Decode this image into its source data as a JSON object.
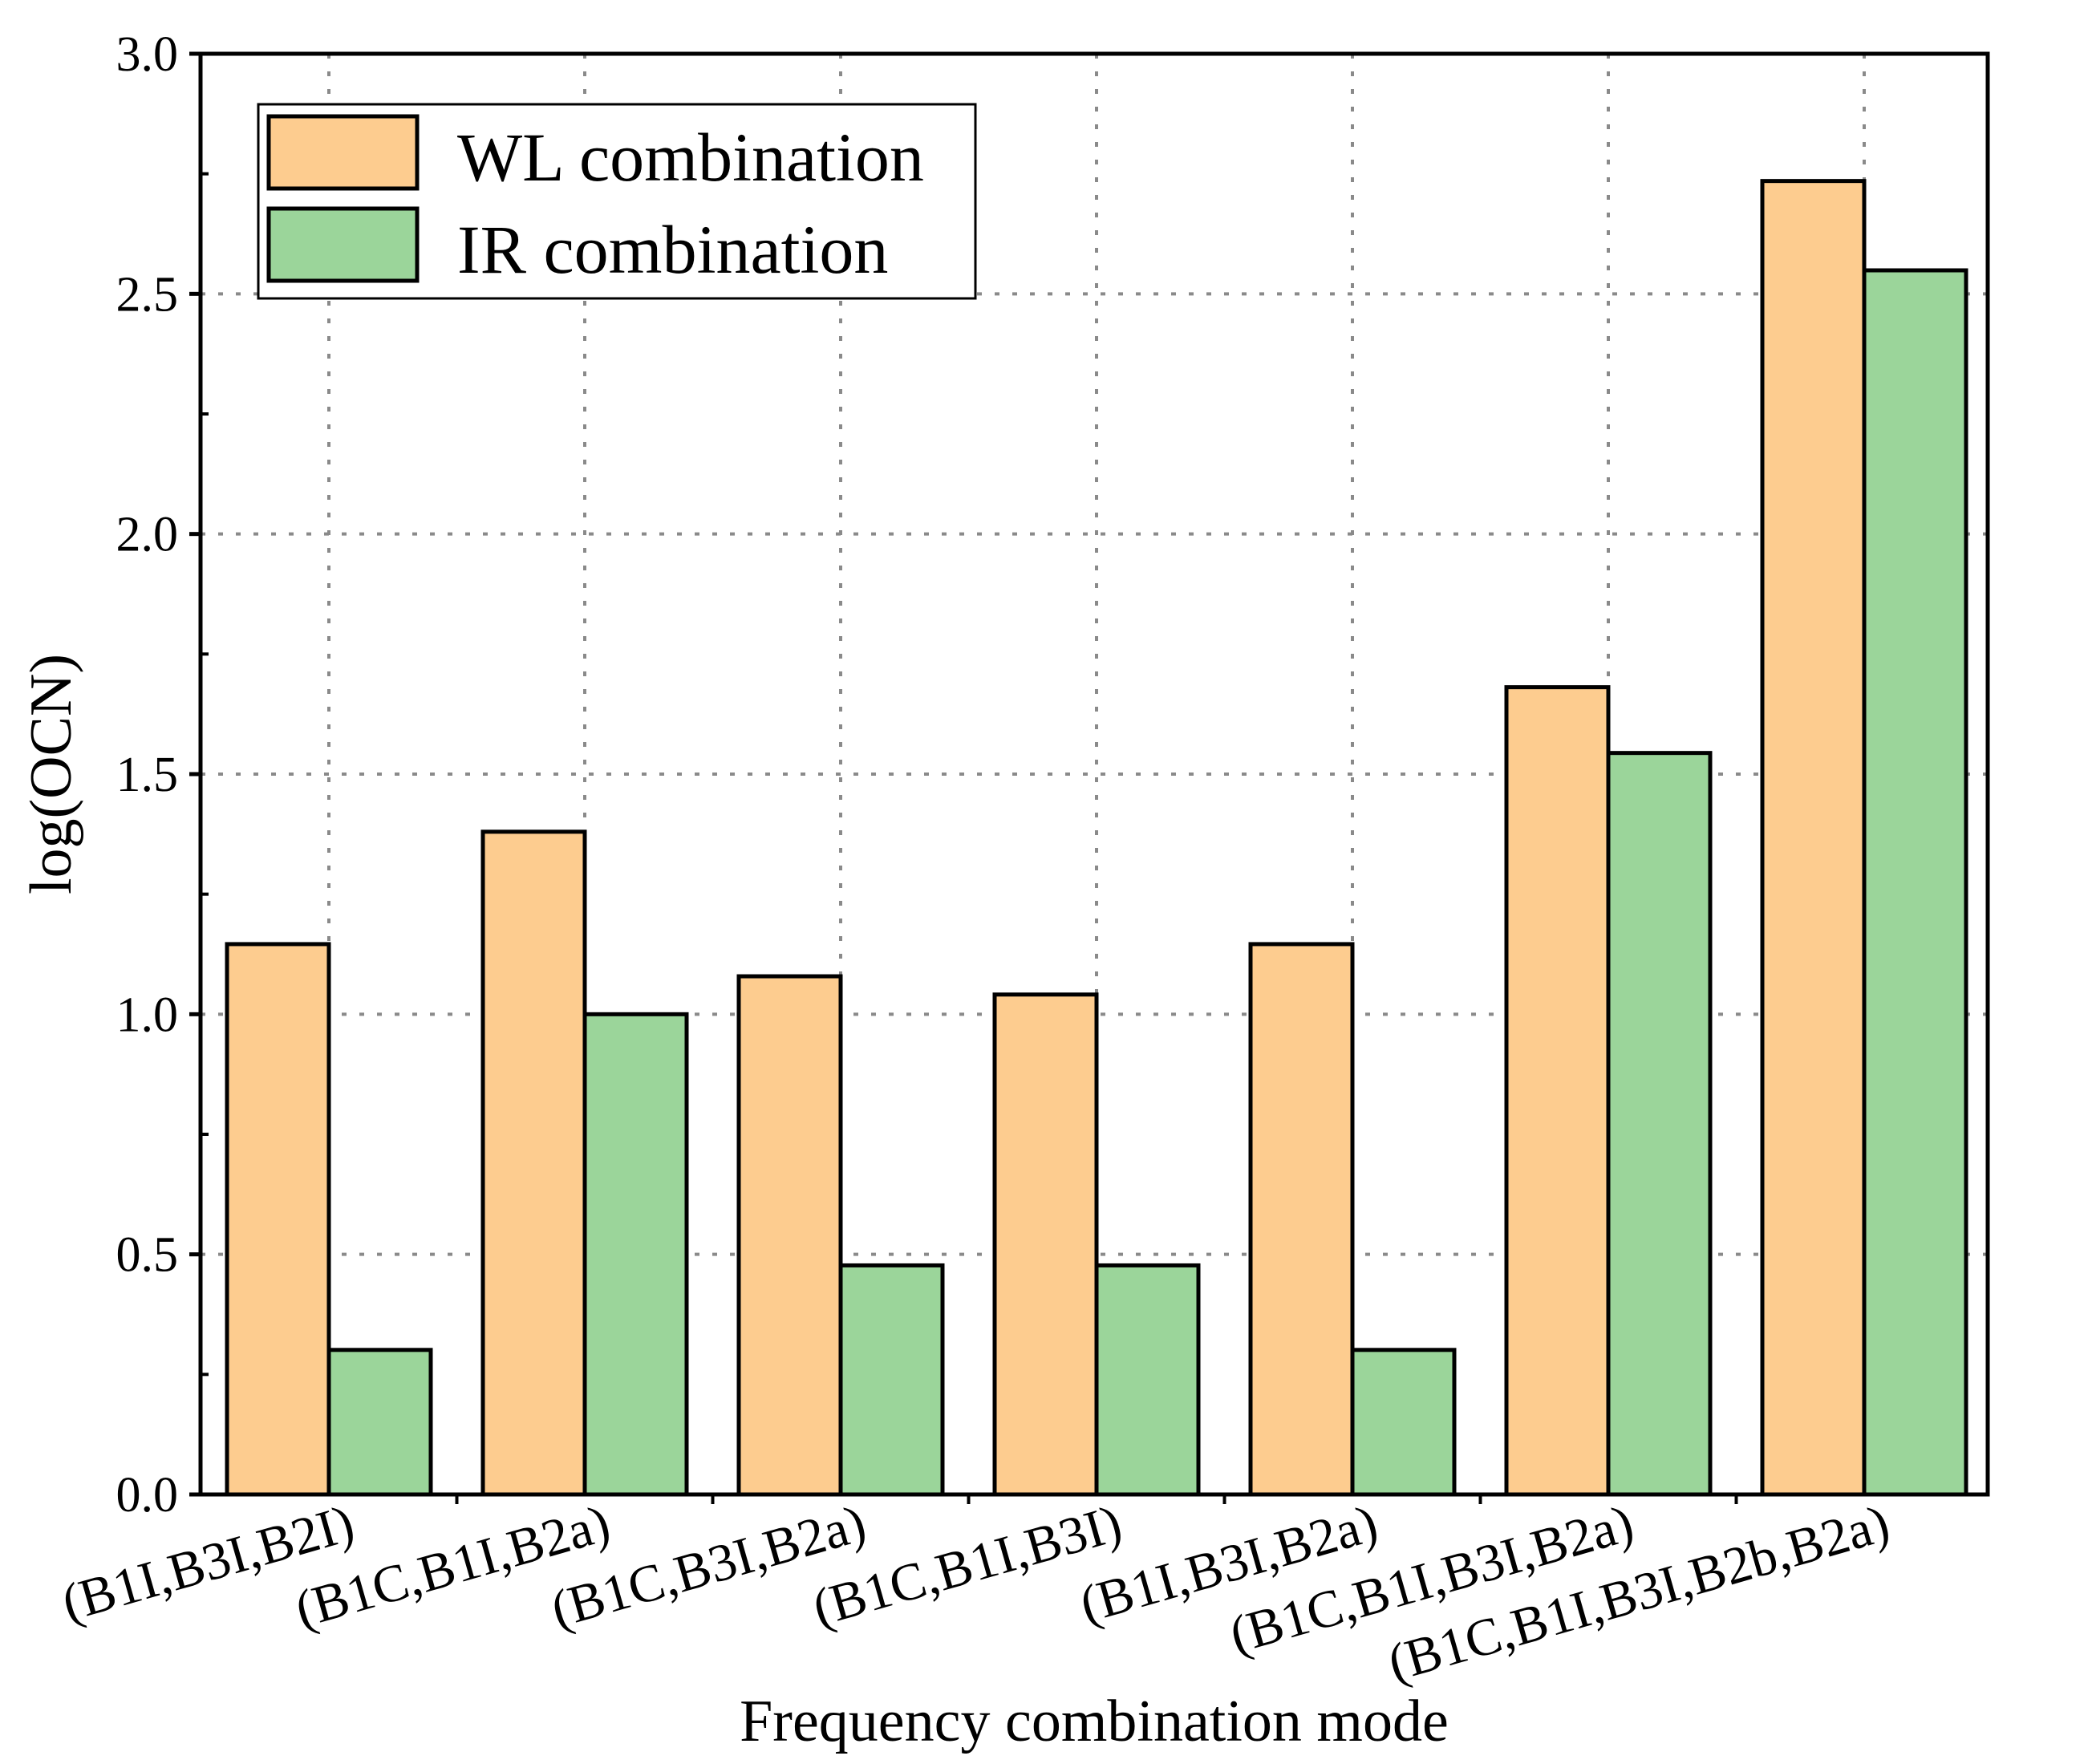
{
  "chart_data": {
    "type": "bar",
    "title": "",
    "xlabel": "Frequency combination mode",
    "ylabel": "log(OCN)",
    "ylim": [
      0,
      3.0
    ],
    "y_ticks": [
      "0.0",
      "0.5",
      "1.0",
      "1.5",
      "2.0",
      "2.5",
      "3.0"
    ],
    "y_tick_values": [
      0,
      0.5,
      1.0,
      1.5,
      2.0,
      2.5,
      3.0
    ],
    "grid": true,
    "legend_position": "top-left",
    "categories": [
      "(B1I,B3I,B2I)",
      "(B1C,B1I,B2a)",
      "(B1C,B3I,B2a)",
      "(B1C,B1I,B3I)",
      "(B1I,B3I,B2a)",
      "(B1C,B1I,B3I,B2a)",
      "(B1C,B1I,B3I,B2b,B2a)"
    ],
    "series": [
      {
        "name": "WL combination",
        "color": "#FDCC8F",
        "values": [
          1.146,
          1.38,
          1.079,
          1.041,
          1.146,
          1.681,
          2.735
        ]
      },
      {
        "name": "IR combination",
        "color": "#9BD59A",
        "values": [
          0.301,
          1.0,
          0.477,
          0.477,
          0.301,
          1.544,
          2.549
        ]
      }
    ]
  }
}
